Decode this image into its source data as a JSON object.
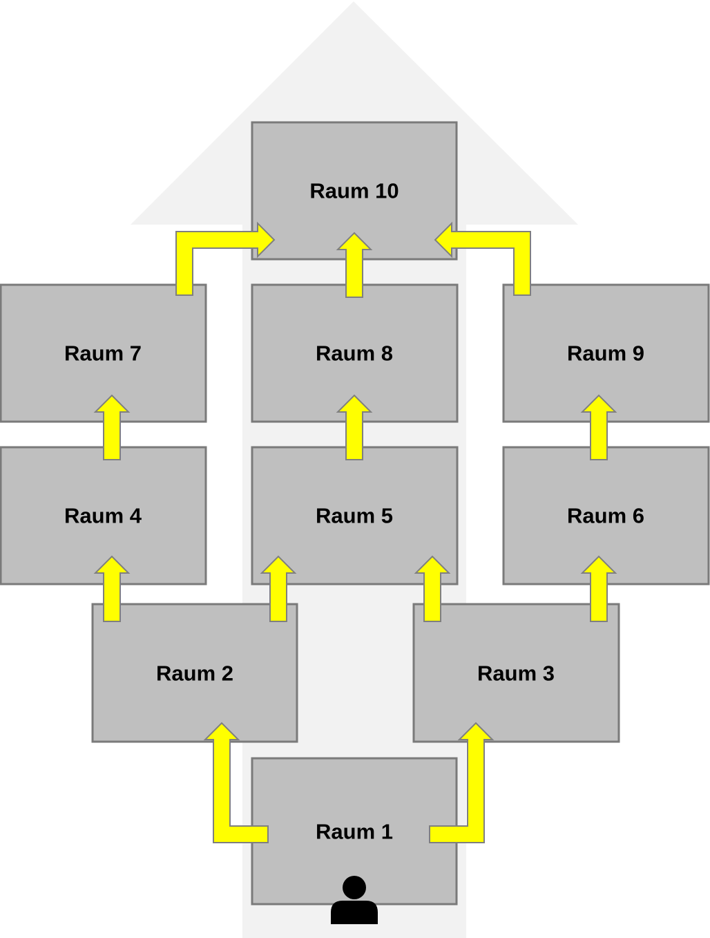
{
  "rooms": [
    {
      "id": "raum-1",
      "label": "Raum 1"
    },
    {
      "id": "raum-2",
      "label": "Raum 2"
    },
    {
      "id": "raum-3",
      "label": "Raum 3"
    },
    {
      "id": "raum-4",
      "label": "Raum 4"
    },
    {
      "id": "raum-5",
      "label": "Raum 5"
    },
    {
      "id": "raum-6",
      "label": "Raum 6"
    },
    {
      "id": "raum-7",
      "label": "Raum 7"
    },
    {
      "id": "raum-8",
      "label": "Raum 8"
    },
    {
      "id": "raum-9",
      "label": "Raum 9"
    },
    {
      "id": "raum-10",
      "label": "Raum 10"
    }
  ],
  "connections": [
    {
      "from": "Raum 1",
      "to": "Raum 2"
    },
    {
      "from": "Raum 1",
      "to": "Raum 3"
    },
    {
      "from": "Raum 2",
      "to": "Raum 4"
    },
    {
      "from": "Raum 2",
      "to": "Raum 5"
    },
    {
      "from": "Raum 3",
      "to": "Raum 5"
    },
    {
      "from": "Raum 3",
      "to": "Raum 6"
    },
    {
      "from": "Raum 4",
      "to": "Raum 7"
    },
    {
      "from": "Raum 5",
      "to": "Raum 8"
    },
    {
      "from": "Raum 6",
      "to": "Raum 9"
    },
    {
      "from": "Raum 7",
      "to": "Raum 10"
    },
    {
      "from": "Raum 8",
      "to": "Raum 10"
    },
    {
      "from": "Raum 9",
      "to": "Raum 10"
    }
  ],
  "colors": {
    "room_fill": "#bfbfbf",
    "room_border": "#7a7a7a",
    "arrow_fill": "#ffff00",
    "background_arrow": "#f2f2f2"
  },
  "icons": {
    "start_marker": "person-icon"
  }
}
